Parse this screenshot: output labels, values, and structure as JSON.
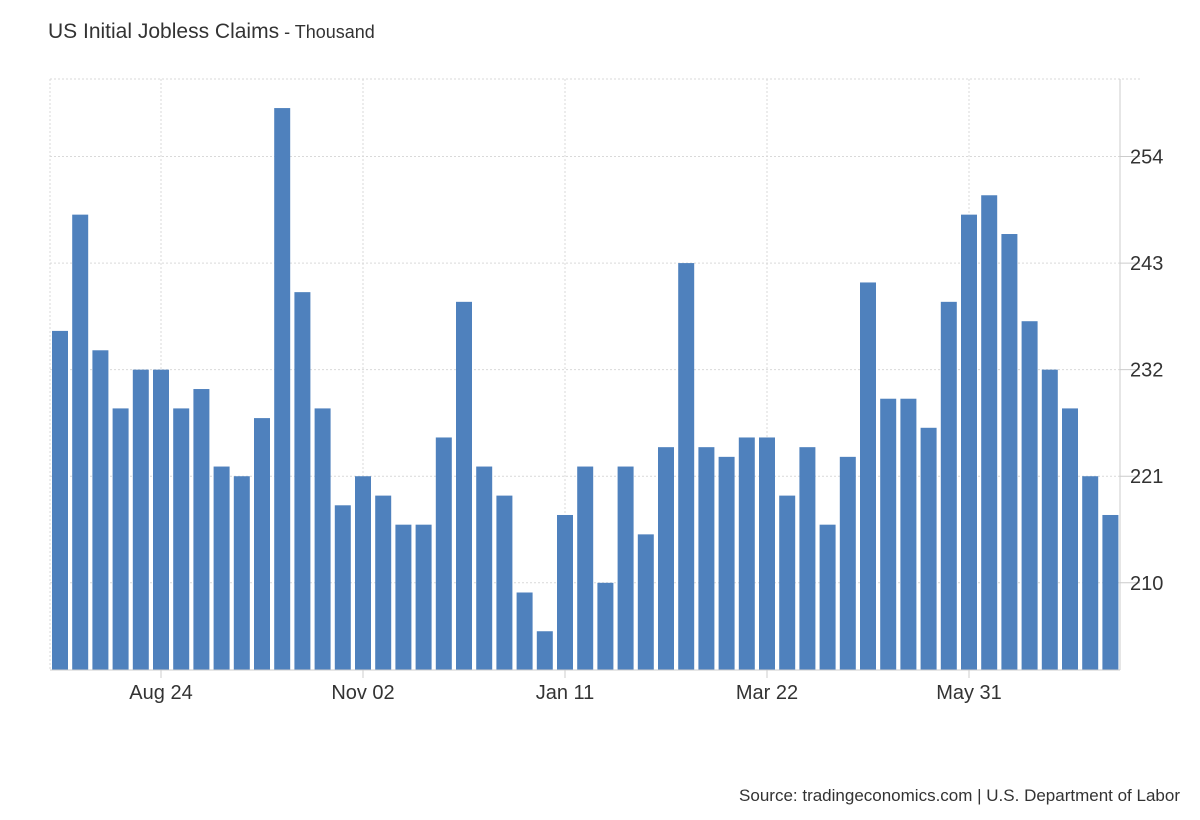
{
  "header": {
    "title": "US Initial Jobless Claims",
    "separator": " - ",
    "subtitle": "Thousand"
  },
  "footer": {
    "source": "Source: tradingeconomics.com | U.S. Department of Labor"
  },
  "colors": {
    "bar": "#4f81bd",
    "grid": "#d9d9d9",
    "axis": "#cccccc",
    "text": "#333333"
  },
  "chart_data": {
    "type": "bar",
    "title": "US Initial Jobless Claims",
    "subtitle": "Thousand",
    "ylim": [
      201,
      262
    ],
    "y_ticks": [
      210,
      221,
      232,
      243,
      254
    ],
    "y_axis_position": "right",
    "grid": true,
    "x_tick_labels": [
      "Aug 24",
      "Nov 02",
      "Jan 11",
      "Mar 22",
      "May 31"
    ],
    "x_tick_indices": [
      5,
      15,
      25,
      35,
      45
    ],
    "values": [
      236,
      248,
      234,
      228,
      232,
      232,
      228,
      230,
      222,
      221,
      227,
      259,
      240,
      228,
      218,
      221,
      219,
      216,
      216,
      225,
      239,
      222,
      219,
      209,
      205,
      217,
      222,
      210,
      222,
      215,
      224,
      243,
      224,
      223,
      225,
      225,
      219,
      224,
      216,
      223,
      241,
      229,
      229,
      226,
      239,
      248,
      250,
      246,
      237,
      232,
      228,
      221,
      217
    ]
  }
}
